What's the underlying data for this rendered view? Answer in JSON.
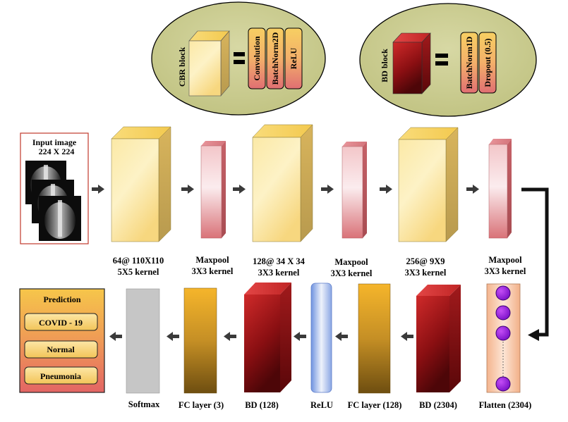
{
  "legend": {
    "cbr": {
      "name": "CBR block",
      "equals": "=",
      "items": [
        "Convolution",
        "BatchNorm2D",
        "ReLU"
      ]
    },
    "bd": {
      "name": "BD block",
      "equals": "=",
      "items": [
        "BatchNorm1D",
        "Dropout (0.5)"
      ]
    }
  },
  "input": {
    "title_line1": "Input image",
    "title_line2": "224 X 224"
  },
  "row1": [
    {
      "line1": "64@ 110X110",
      "line2": "5X5 kernel"
    },
    {
      "line1": "Maxpool",
      "line2": "3X3 kernel"
    },
    {
      "line1": "128@ 34 X 34",
      "line2": "3X3 kernel"
    },
    {
      "line1": "Maxpool",
      "line2": "3X3 kernel"
    },
    {
      "line1": "256@ 9X9",
      "line2": "3X3 kernel"
    },
    {
      "line1": "Maxpool",
      "line2": "3X3 kernel"
    }
  ],
  "row2": [
    "Flatten (2304)",
    "BD (2304)",
    "FC layer (128)",
    "ReLU",
    "BD (128)",
    "FC layer (3)",
    "Softmax"
  ],
  "flatten_nodes_visible": 4,
  "prediction": {
    "title": "Prediction",
    "classes": [
      "COVID - 19",
      "Normal",
      "Pneumonia"
    ]
  }
}
